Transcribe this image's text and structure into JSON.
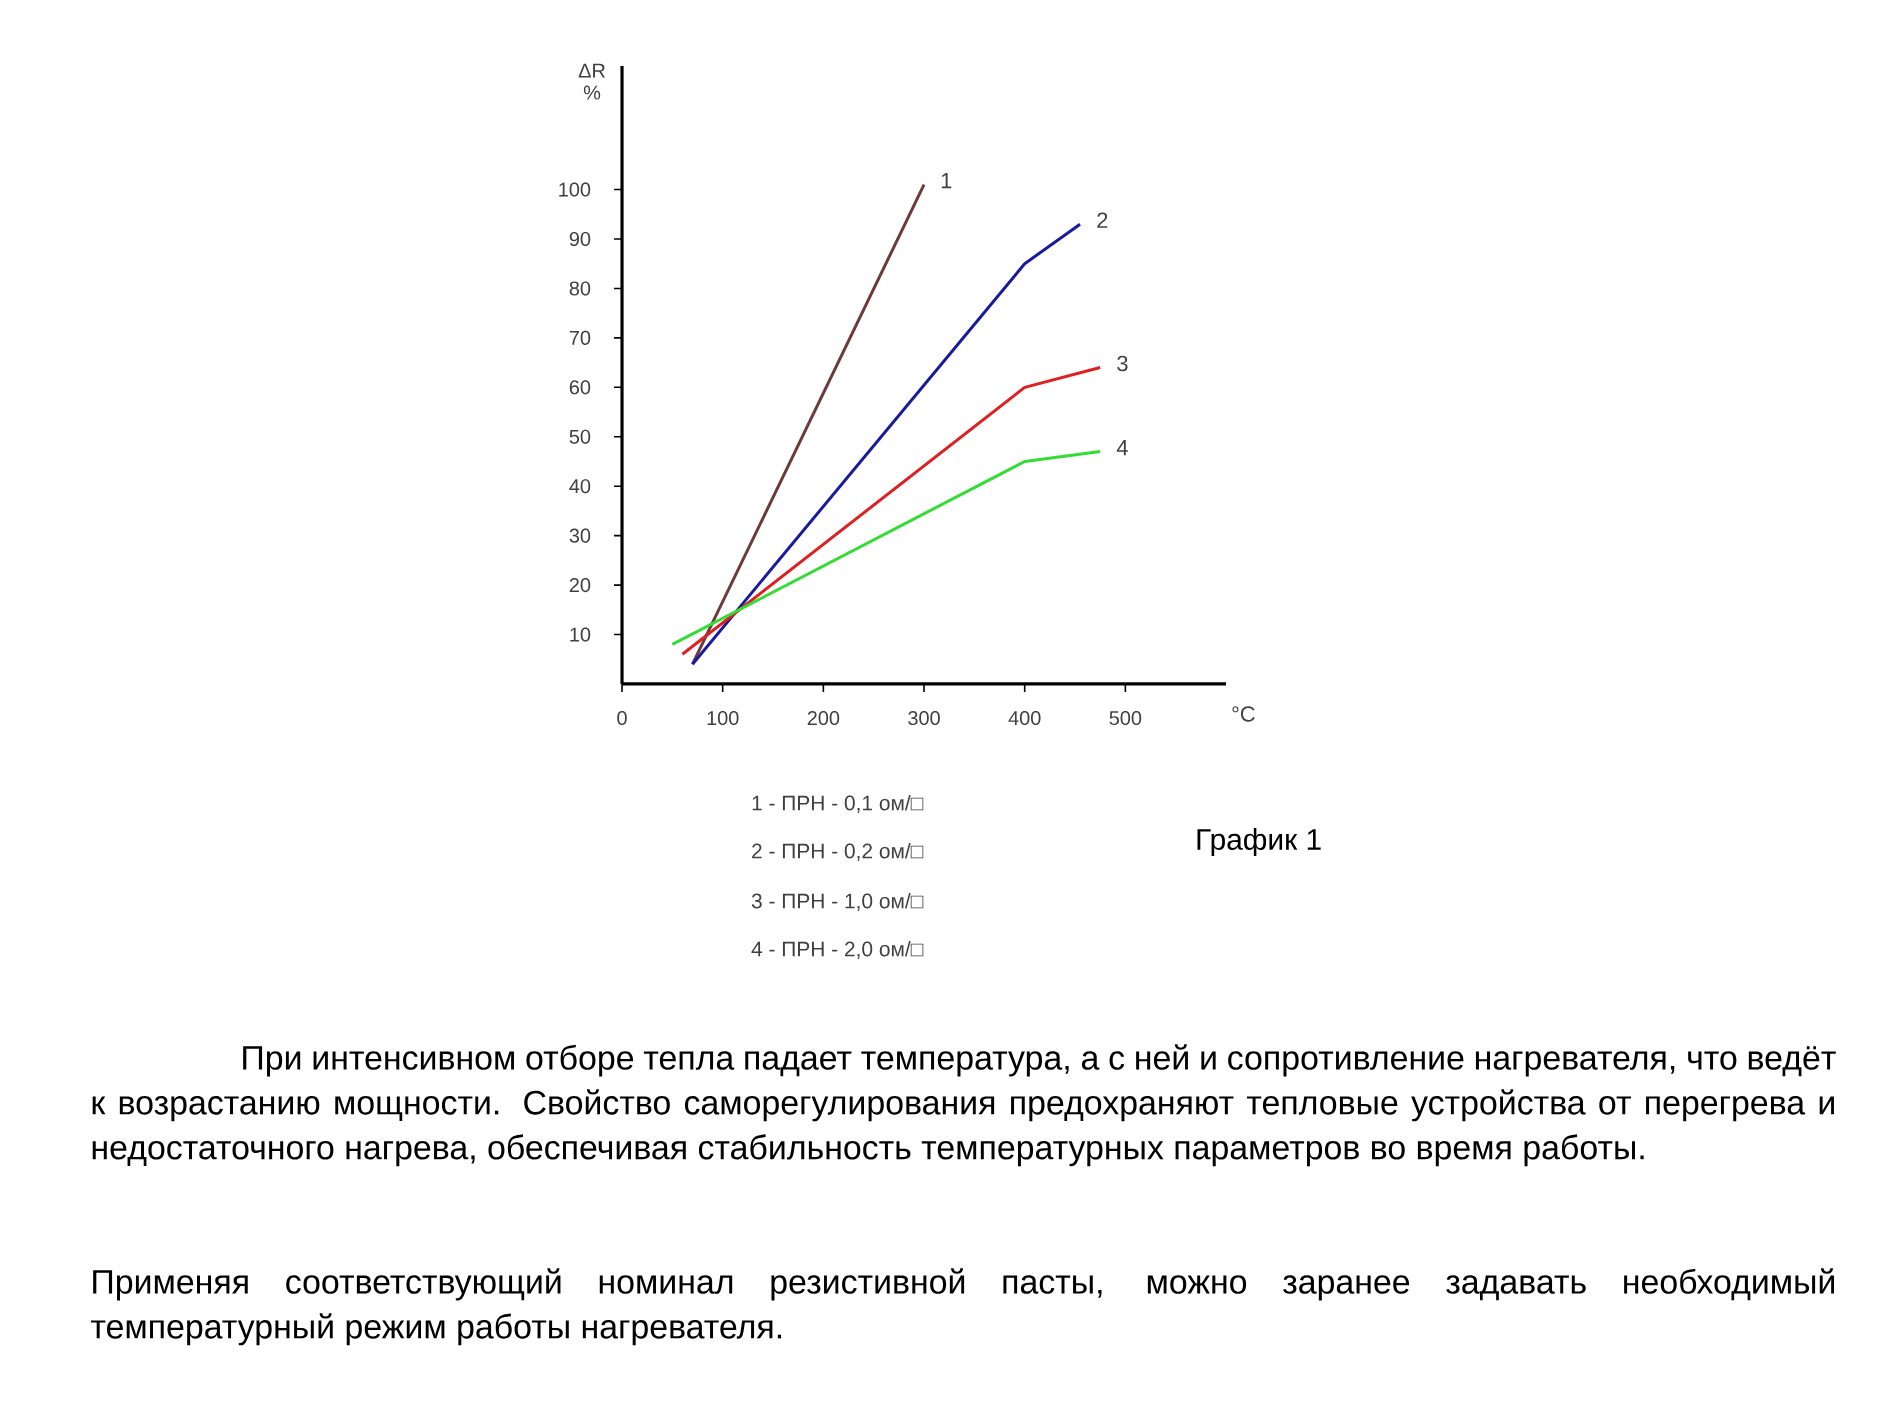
{
  "chart_data": {
    "type": "line",
    "xlabel": "°C",
    "ylabel": "ΔR %",
    "xlim": [
      0,
      600
    ],
    "ylim": [
      0,
      125
    ],
    "xticks": [
      0,
      100,
      200,
      300,
      400,
      500
    ],
    "yticks": [
      10,
      20,
      30,
      40,
      50,
      60,
      70,
      80,
      90,
      100
    ],
    "series": [
      {
        "name": "1",
        "color": "#6b3a3a",
        "x": [
          70,
          300
        ],
        "values": [
          4,
          101
        ]
      },
      {
        "name": "2",
        "color": "#1a1aa0",
        "x": [
          70,
          400,
          455
        ],
        "values": [
          4,
          85,
          93
        ]
      },
      {
        "name": "3",
        "color": "#e02020",
        "x": [
          60,
          400,
          475
        ],
        "values": [
          6,
          60,
          64
        ]
      },
      {
        "name": "4",
        "color": "#33dd33",
        "x": [
          50,
          400,
          475
        ],
        "values": [
          8,
          45,
          47
        ]
      }
    ],
    "annotations": [
      "1 - ПРН - 0,1 ом/□",
      "2 - ПРН - 0,2 ом/□",
      "3 - ПРН - 1,0 ом/□",
      "4 - ПРН - 2,0 ом/□",
      "График 1",
      "При интенсивном отборе тепла падает температура, а с ней и сопротивление нагревателя, что ведёт к возрастанию мощности. Свойство саморегулирования предохраняют тепловые устройства от перегрева и недостаточного нагрева, обеспечивая стабильность температурных параметров во время работы.",
      "Применяя соответствующий номинал резистивной пасты, можно заранее задавать необходимый температурный режим работы нагревателя."
    ]
  }
}
